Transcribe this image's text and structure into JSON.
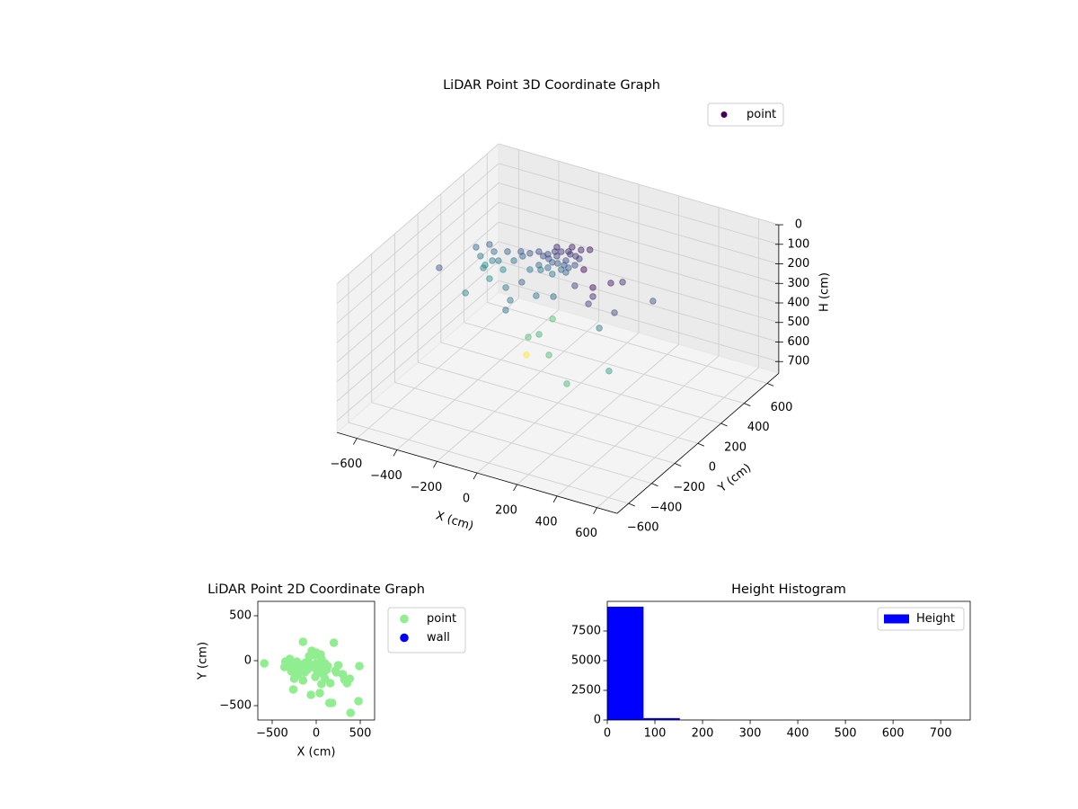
{
  "chart_data": [
    {
      "type": "scatter3d",
      "title": "LiDAR Point 3D Coordinate Graph",
      "xlabel": "X (cm)",
      "ylabel": "Y (cm)",
      "zlabel": "H (cm)",
      "colormap": "viridis",
      "zinvert": true,
      "legend": "upper right",
      "xlim": [
        -700,
        700
      ],
      "ylim": [
        -700,
        700
      ],
      "zlim": [
        0,
        760
      ],
      "xticks": [
        {
          "value": -600,
          "label": "−600"
        },
        {
          "value": -400,
          "label": "−400"
        },
        {
          "value": -200,
          "label": "−200"
        },
        0,
        200,
        400,
        600
      ],
      "yticks": [
        {
          "value": -600,
          "label": "−600"
        },
        {
          "value": -400,
          "label": "−400"
        },
        {
          "value": -200,
          "label": "−200"
        },
        0,
        200,
        400,
        600
      ],
      "zticks": [
        0,
        100,
        200,
        300,
        400,
        500,
        600,
        700
      ],
      "series": [
        {
          "name": "point",
          "color": "#440154",
          "x": [
            -593,
            -462,
            -203,
            -238,
            -318,
            -142,
            -148,
            -94,
            -215,
            13,
            218,
            371,
            207,
            283,
            360,
            208,
            207,
            175,
            153,
            27,
            -166,
            -80,
            -238,
            -457,
            -488,
            -560,
            -515,
            -470,
            -537,
            -425,
            -492,
            -447,
            -582,
            -393,
            -501,
            -358,
            -313,
            -268,
            -349,
            -223,
            -57,
            -13,
            -120,
            -313,
            -178,
            -156,
            -133,
            -201,
            -111,
            -88,
            -223,
            -156,
            -178,
            -246,
            -133,
            -66,
            -201,
            -268,
            -102,
            -174,
            -219,
            -142,
            -188,
            -120,
            -84,
            -259,
            175,
            72
          ],
          "y": [
            0,
            0,
            -100,
            0,
            100,
            200,
            0,
            0,
            100,
            -100,
            -300,
            -200,
            0,
            0,
            200,
            200,
            100,
            0,
            0,
            100,
            100,
            100,
            100,
            200,
            200,
            300,
            300,
            300,
            300,
            300,
            300,
            300,
            300,
            300,
            300,
            300,
            300,
            300,
            300,
            300,
            300,
            300,
            300,
            300,
            300,
            300,
            300,
            300,
            300,
            300,
            300,
            300,
            300,
            300,
            300,
            300,
            300,
            300,
            300,
            300,
            300,
            300,
            300,
            300,
            300,
            300,
            0,
            100
          ],
          "z": [
            244,
            334,
            294,
            305,
            315,
            475,
            467,
            437,
            629,
            460,
            444,
            385,
            316,
            215,
            235,
            183,
            137,
            164,
            208,
            204,
            312,
            291,
            264,
            362,
            316,
            328,
            255,
            325,
            367,
            265,
            285,
            364,
            289,
            302,
            334,
            245,
            241,
            219,
            266,
            219,
            148,
            134,
            175,
            324,
            215,
            186,
            225,
            254,
            186,
            235,
            288,
            278,
            169,
            235,
            285,
            196,
            314,
            288,
            147,
            251,
            241,
            251,
            195,
            258,
            188,
            309,
            118,
            108
          ]
        }
      ]
    },
    {
      "type": "scatter",
      "title": "LiDAR Point 2D Coordinate Graph",
      "xlabel": "X (cm)",
      "ylabel": "Y (cm)",
      "legend": "outside upper right",
      "xlim": [
        -663,
        663
      ],
      "ylim": [
        -660,
        660
      ],
      "xticks": [
        {
          "value": -500,
          "label": "−500"
        },
        0,
        500
      ],
      "yticks": [
        {
          "value": -500,
          "label": "−500"
        },
        0,
        500
      ],
      "series": [
        {
          "name": "point",
          "color": "#90ee90",
          "x": [
            -590,
            -350,
            -330,
            -300,
            -280,
            -260,
            -250,
            -240,
            -200,
            -180,
            -150,
            -120,
            -100,
            -60,
            -50,
            -20,
            0,
            30,
            40,
            60,
            80,
            100,
            120,
            150,
            180,
            200,
            220,
            250,
            300,
            320,
            350,
            380,
            390,
            480,
            490,
            -220,
            -300,
            -150,
            0,
            50,
            -80,
            100,
            160,
            -10,
            60,
            -320,
            -270,
            -230,
            -190,
            -130,
            -90,
            -40,
            20,
            70,
            130,
            -360,
            -210,
            10,
            110,
            230
          ],
          "y": [
            -30,
            -10,
            -50,
            -80,
            -120,
            -320,
            -200,
            -150,
            -100,
            -60,
            210,
            -20,
            -100,
            -380,
            110,
            60,
            -30,
            -80,
            -360,
            20,
            -150,
            -200,
            -100,
            -470,
            -470,
            200,
            -110,
            -50,
            -150,
            -210,
            -250,
            -200,
            -580,
            -450,
            -60,
            -10,
            20,
            -220,
            90,
            70,
            50,
            -30,
            -250,
            -180,
            -260,
            -30,
            -60,
            -90,
            -40,
            -130,
            -10,
            -70,
            -120,
            -40,
            -60,
            -70,
            -160,
            -110,
            -90,
            -130
          ]
        },
        {
          "name": "wall",
          "color": "#0000ff",
          "x": [],
          "y": []
        }
      ]
    },
    {
      "type": "histogram",
      "title": "Height Histogram",
      "name": "Height",
      "color": "#0000ff",
      "legend": "upper right",
      "bins": [
        0,
        76.2,
        152.4,
        228.6,
        304.8,
        381,
        457.2,
        533.4,
        609.6,
        685.8,
        762
      ],
      "values": [
        9550,
        160,
        15,
        8,
        5,
        3,
        3,
        2,
        1,
        1
      ],
      "xlim": [
        0,
        762
      ],
      "ylim": [
        0,
        10000
      ],
      "xticks": [
        0,
        100,
        200,
        300,
        400,
        500,
        600,
        700
      ],
      "yticks": [
        0,
        2500,
        5000,
        7500
      ]
    }
  ]
}
